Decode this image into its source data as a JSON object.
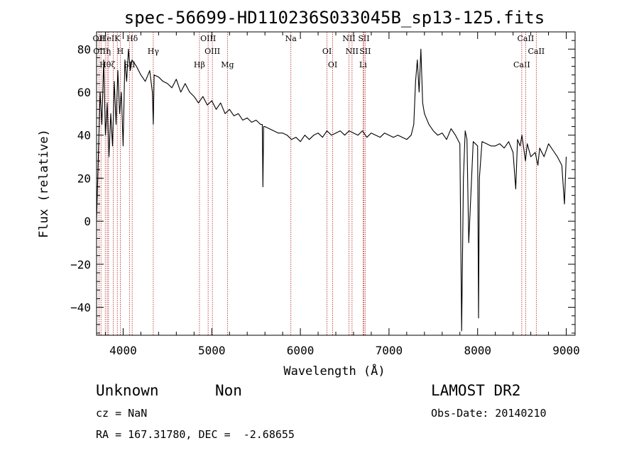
{
  "chart_data": {
    "type": "line",
    "title": "spec-56699-HD110236S033045B_sp13-125.fits",
    "xlabel": "Wavelength (Å)",
    "ylabel": "Flux (relative)",
    "xlim": [
      3700,
      9100
    ],
    "ylim": [
      -53,
      88
    ],
    "xticks": [
      4000,
      5000,
      6000,
      7000,
      8000,
      9000
    ],
    "yticks": [
      -40,
      -20,
      0,
      20,
      40,
      60,
      80
    ],
    "grid": false,
    "series": [
      {
        "color": "#000000",
        "x": [
          3700,
          3720,
          3740,
          3760,
          3780,
          3800,
          3820,
          3840,
          3860,
          3880,
          3900,
          3920,
          3940,
          3960,
          3980,
          4000,
          4020,
          4040,
          4060,
          4080,
          4100,
          4150,
          4200,
          4250,
          4300,
          4330,
          4340,
          4350,
          4400,
          4450,
          4500,
          4550,
          4600,
          4650,
          4700,
          4750,
          4800,
          4850,
          4900,
          4950,
          5000,
          5050,
          5100,
          5150,
          5200,
          5250,
          5300,
          5350,
          5400,
          5450,
          5500,
          5550,
          5570,
          5577,
          5585,
          5600,
          5650,
          5700,
          5750,
          5800,
          5850,
          5900,
          5950,
          6000,
          6050,
          6100,
          6150,
          6200,
          6250,
          6300,
          6350,
          6400,
          6450,
          6500,
          6550,
          6600,
          6650,
          6700,
          6750,
          6800,
          6850,
          6900,
          6950,
          7000,
          7050,
          7100,
          7150,
          7200,
          7250,
          7280,
          7300,
          7320,
          7340,
          7360,
          7380,
          7400,
          7420,
          7450,
          7500,
          7550,
          7600,
          7650,
          7700,
          7750,
          7800,
          7820,
          7840,
          7860,
          7880,
          7900,
          7950,
          8000,
          8010,
          8020,
          8050,
          8100,
          8150,
          8200,
          8250,
          8300,
          8350,
          8400,
          8430,
          8450,
          8480,
          8500,
          8540,
          8560,
          8600,
          8650,
          8680,
          8700,
          8750,
          8800,
          8850,
          8900,
          8950,
          8980,
          9000
        ],
        "y": [
          0,
          30,
          60,
          45,
          75,
          40,
          55,
          30,
          50,
          35,
          65,
          45,
          70,
          50,
          60,
          35,
          75,
          65,
          80,
          70,
          75,
          72,
          68,
          65,
          70,
          60,
          45,
          68,
          67,
          65,
          64,
          62,
          66,
          60,
          64,
          60,
          58,
          55,
          58,
          54,
          56,
          52,
          55,
          50,
          52,
          49,
          50,
          47,
          48,
          46,
          47,
          45,
          45,
          16,
          44,
          44,
          43,
          42,
          41,
          41,
          40,
          38,
          39,
          37,
          40,
          38,
          40,
          41,
          39,
          42,
          40,
          41,
          42,
          40,
          42,
          41,
          40,
          42,
          39,
          41,
          40,
          39,
          41,
          40,
          39,
          40,
          39,
          38,
          40,
          45,
          65,
          75,
          60,
          80,
          55,
          50,
          48,
          45,
          42,
          40,
          41,
          38,
          43,
          40,
          36,
          -51,
          20,
          42,
          38,
          -10,
          37,
          35,
          -45,
          20,
          37,
          36,
          35,
          35,
          36,
          34,
          37,
          32,
          15,
          38,
          35,
          40,
          28,
          36,
          30,
          32,
          26,
          34,
          30,
          36,
          33,
          30,
          26,
          8,
          30
        ]
      }
    ],
    "lines": [
      {
        "x": 3727,
        "label": "OII"
      },
      {
        "x": 3750,
        "label": "OIII"
      },
      {
        "x": 3798,
        "label": "Hθ"
      },
      {
        "x": 3820,
        "label": "HeI"
      },
      {
        "x": 3835,
        "label": "η"
      },
      {
        "x": 3889,
        "label": "ζ"
      },
      {
        "x": 3934,
        "label": "K"
      },
      {
        "x": 3968,
        "label": "H"
      },
      {
        "x": 4071,
        "label": "SII"
      },
      {
        "x": 4102,
        "label": "Hδ"
      },
      {
        "x": 4340,
        "label": "Hγ"
      },
      {
        "x": 4861,
        "label": "Hβ"
      },
      {
        "x": 4959,
        "label": "OIII"
      },
      {
        "x": 5007,
        "label": "OIII"
      },
      {
        "x": 5177,
        "label": "Mg"
      },
      {
        "x": 5893,
        "label": "Na"
      },
      {
        "x": 6300,
        "label": "OI"
      },
      {
        "x": 6364,
        "label": "OI"
      },
      {
        "x": 6548,
        "label": "NII"
      },
      {
        "x": 6583,
        "label": "NII"
      },
      {
        "x": 6707,
        "label": "Li"
      },
      {
        "x": 6716,
        "label": "SII"
      },
      {
        "x": 6731,
        "label": "SII"
      },
      {
        "x": 8498,
        "label": "CaII"
      },
      {
        "x": 8542,
        "label": "CaII"
      },
      {
        "x": 8662,
        "label": "CaII"
      }
    ],
    "line_color": "#b22222"
  },
  "info": {
    "class": "Unknown",
    "subclass": "Non",
    "cz": "cz = NaN",
    "radec": "RA = 167.31780, DEC =  -2.68655",
    "survey": "LAMOST DR2",
    "obsdate": "Obs-Date: 20140210"
  }
}
